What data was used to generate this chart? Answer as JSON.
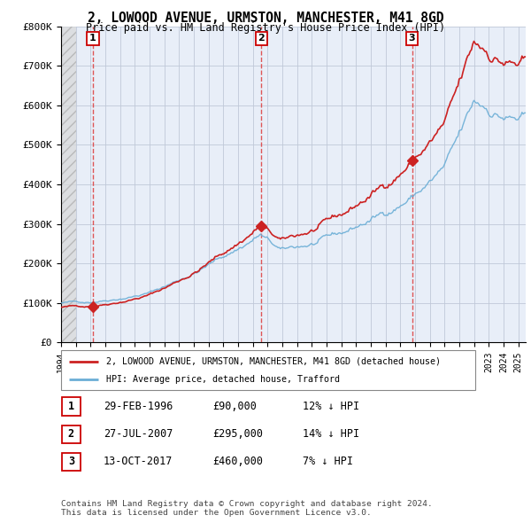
{
  "title": "2, LOWOOD AVENUE, URMSTON, MANCHESTER, M41 8GD",
  "subtitle": "Price paid vs. HM Land Registry's House Price Index (HPI)",
  "ylim": [
    0,
    800000
  ],
  "yticks": [
    0,
    100000,
    200000,
    300000,
    400000,
    500000,
    600000,
    700000,
    800000
  ],
  "ytick_labels": [
    "£0",
    "£100K",
    "£200K",
    "£300K",
    "£400K",
    "£500K",
    "£600K",
    "£700K",
    "£800K"
  ],
  "xlim_start": 1994.0,
  "xlim_end": 2025.5,
  "sale_dates": [
    1996.16,
    2007.57,
    2017.79
  ],
  "sale_prices": [
    90000,
    295000,
    460000
  ],
  "sale_labels": [
    "1",
    "2",
    "3"
  ],
  "hpi_line_color": "#6baed6",
  "price_line_color": "#cc2222",
  "marker_color": "#cc2222",
  "dashed_line_color": "#dd4444",
  "background_plot": "#e8eef8",
  "grid_color": "#c0c8d8",
  "legend_entries": [
    "2, LOWOOD AVENUE, URMSTON, MANCHESTER, M41 8GD (detached house)",
    "HPI: Average price, detached house, Trafford"
  ],
  "table_rows": [
    [
      "1",
      "29-FEB-1996",
      "£90,000",
      "12% ↓ HPI"
    ],
    [
      "2",
      "27-JUL-2007",
      "£295,000",
      "14% ↓ HPI"
    ],
    [
      "3",
      "13-OCT-2017",
      "£460,000",
      "7% ↓ HPI"
    ]
  ],
  "footnote": "Contains HM Land Registry data © Crown copyright and database right 2024.\nThis data is licensed under the Open Government Licence v3.0."
}
